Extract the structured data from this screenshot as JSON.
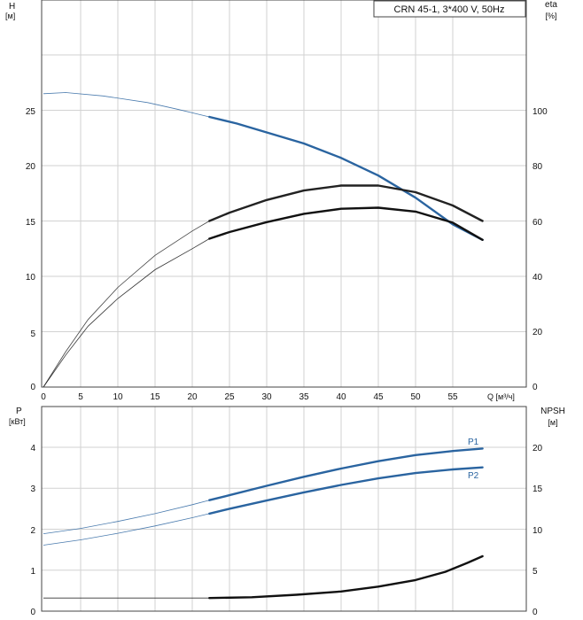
{
  "chart_data": [
    {
      "type": "line",
      "title": "CRN 45-1, 3*400 V, 50Hz",
      "xlabel": "Q [м³/ч]",
      "x_ticks": [
        0,
        5,
        10,
        15,
        20,
        25,
        30,
        35,
        40,
        45,
        50,
        55
      ],
      "xlim": [
        0,
        60
      ],
      "y_left": {
        "label": "H",
        "unit": "[м]",
        "ticks": [
          0,
          5,
          10,
          15,
          20,
          25
        ],
        "lim": [
          0,
          35
        ]
      },
      "y_right": {
        "label": "eta",
        "unit": "[%]",
        "ticks": [
          0,
          20,
          40,
          60,
          80,
          100
        ],
        "lim": [
          0,
          140
        ]
      },
      "grid": true,
      "series": [
        {
          "axis": "left",
          "color": "#2a64a0",
          "values": [
            {
              "x": 0,
              "y": 26.5
            },
            {
              "x": 3,
              "y": 26.6
            },
            {
              "x": 8,
              "y": 26.3
            },
            {
              "x": 14,
              "y": 25.7
            },
            {
              "x": 18,
              "y": 25.1
            },
            {
              "x": 22.3,
              "y": 24.4
            },
            {
              "x": 26,
              "y": 23.8
            },
            {
              "x": 30,
              "y": 23.0
            },
            {
              "x": 35,
              "y": 22.0
            },
            {
              "x": 40,
              "y": 20.7
            },
            {
              "x": 45,
              "y": 19.1
            },
            {
              "x": 50,
              "y": 17.1
            },
            {
              "x": 55,
              "y": 14.7
            },
            {
              "x": 59,
              "y": 13.3
            }
          ]
        },
        {
          "axis": "right",
          "color": "#222222",
          "values": [
            {
              "x": 0,
              "y": 0
            },
            {
              "x": 3,
              "y": 12.8
            },
            {
              "x": 6,
              "y": 24.4
            },
            {
              "x": 10,
              "y": 36.0
            },
            {
              "x": 15,
              "y": 47.6
            },
            {
              "x": 20,
              "y": 56.4
            },
            {
              "x": 22.3,
              "y": 60.0
            },
            {
              "x": 25,
              "y": 63.0
            },
            {
              "x": 30,
              "y": 67.6
            },
            {
              "x": 35,
              "y": 71.0
            },
            {
              "x": 40,
              "y": 72.8
            },
            {
              "x": 45,
              "y": 72.8
            },
            {
              "x": 50,
              "y": 70.4
            },
            {
              "x": 55,
              "y": 65.6
            },
            {
              "x": 59,
              "y": 60.0
            }
          ]
        },
        {
          "axis": "right",
          "color": "#111111",
          "values": [
            {
              "x": 0,
              "y": 0
            },
            {
              "x": 3,
              "y": 11.6
            },
            {
              "x": 6,
              "y": 22.0
            },
            {
              "x": 10,
              "y": 32.0
            },
            {
              "x": 15,
              "y": 42.4
            },
            {
              "x": 20,
              "y": 50.0
            },
            {
              "x": 22.3,
              "y": 53.6
            },
            {
              "x": 25,
              "y": 56.0
            },
            {
              "x": 30,
              "y": 59.6
            },
            {
              "x": 35,
              "y": 62.6
            },
            {
              "x": 40,
              "y": 64.4
            },
            {
              "x": 45,
              "y": 64.8
            },
            {
              "x": 50,
              "y": 63.4
            },
            {
              "x": 55,
              "y": 59.4
            },
            {
              "x": 59,
              "y": 53.2
            }
          ]
        }
      ]
    },
    {
      "type": "line",
      "xlim": [
        0,
        60
      ],
      "y_left": {
        "label": "P",
        "unit": "[кВт]",
        "ticks": [
          0,
          1,
          2,
          3,
          4
        ],
        "lim": [
          0,
          4.6
        ]
      },
      "y_right": {
        "label": "NPSH",
        "unit": "[м]",
        "ticks": [
          0,
          5,
          10,
          15,
          20
        ],
        "lim": [
          0,
          23
        ]
      },
      "grid": true,
      "series": [
        {
          "name": "P1",
          "axis": "left",
          "color": "#2a64a0",
          "values": [
            {
              "x": 0,
              "y": 1.89
            },
            {
              "x": 5,
              "y": 2.02
            },
            {
              "x": 10,
              "y": 2.19
            },
            {
              "x": 15,
              "y": 2.38
            },
            {
              "x": 20,
              "y": 2.6
            },
            {
              "x": 22.3,
              "y": 2.71
            },
            {
              "x": 25,
              "y": 2.83
            },
            {
              "x": 30,
              "y": 3.06
            },
            {
              "x": 35,
              "y": 3.28
            },
            {
              "x": 40,
              "y": 3.48
            },
            {
              "x": 45,
              "y": 3.66
            },
            {
              "x": 50,
              "y": 3.81
            },
            {
              "x": 55,
              "y": 3.91
            },
            {
              "x": 59,
              "y": 3.97
            }
          ]
        },
        {
          "name": "P2",
          "axis": "left",
          "color": "#2a64a0",
          "values": [
            {
              "x": 0,
              "y": 1.61
            },
            {
              "x": 5,
              "y": 1.74
            },
            {
              "x": 10,
              "y": 1.9
            },
            {
              "x": 15,
              "y": 2.08
            },
            {
              "x": 20,
              "y": 2.28
            },
            {
              "x": 22.3,
              "y": 2.38
            },
            {
              "x": 25,
              "y": 2.5
            },
            {
              "x": 30,
              "y": 2.7
            },
            {
              "x": 35,
              "y": 2.9
            },
            {
              "x": 40,
              "y": 3.08
            },
            {
              "x": 45,
              "y": 3.24
            },
            {
              "x": 50,
              "y": 3.37
            },
            {
              "x": 55,
              "y": 3.46
            },
            {
              "x": 59,
              "y": 3.51
            }
          ]
        },
        {
          "axis": "right",
          "color": "#111111",
          "values": [
            {
              "x": 0,
              "y": 1.6
            },
            {
              "x": 10,
              "y": 1.6
            },
            {
              "x": 20,
              "y": 1.6
            },
            {
              "x": 22.3,
              "y": 1.6
            },
            {
              "x": 28,
              "y": 1.7
            },
            {
              "x": 34,
              "y": 2.0
            },
            {
              "x": 40,
              "y": 2.4
            },
            {
              "x": 45,
              "y": 3.0
            },
            {
              "x": 50,
              "y": 3.8
            },
            {
              "x": 54,
              "y": 4.8
            },
            {
              "x": 57,
              "y": 5.9
            },
            {
              "x": 59,
              "y": 6.7
            }
          ]
        }
      ]
    }
  ]
}
